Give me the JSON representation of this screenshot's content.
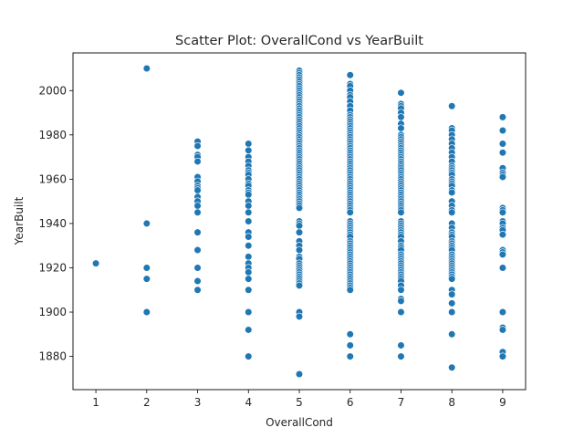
{
  "chart_data": {
    "type": "scatter",
    "title": "Scatter Plot: OverallCond vs YearBuilt",
    "xlabel": "OverallCond",
    "ylabel": "YearBuilt",
    "xlim": [
      0.55,
      9.45
    ],
    "ylim": [
      1865,
      2017
    ],
    "xticks": [
      1,
      2,
      3,
      4,
      5,
      6,
      7,
      8,
      9
    ],
    "yticks": [
      1880,
      1900,
      1920,
      1940,
      1960,
      1980,
      2000
    ],
    "marker_color": "#1f77b4",
    "points": [
      {
        "x": 1,
        "y": [
          1922
        ]
      },
      {
        "x": 2,
        "y": [
          2010,
          1940,
          1920,
          1915,
          1900
        ]
      },
      {
        "x": 3,
        "y": [
          1977,
          1975,
          1971,
          1970,
          1968,
          1961,
          1959,
          1957,
          1956,
          1955,
          1952,
          1950,
          1948,
          1945,
          1936,
          1928,
          1920,
          1914,
          1910
        ]
      },
      {
        "x": 4,
        "y": [
          1976,
          1973,
          1970,
          1968,
          1966,
          1964,
          1963,
          1962,
          1960,
          1958,
          1957,
          1955,
          1954,
          1953,
          1950,
          1948,
          1945,
          1941,
          1936,
          1934,
          1930,
          1925,
          1922,
          1920,
          1918,
          1915,
          1910,
          1900,
          1892,
          1880
        ]
      },
      {
        "x": 5,
        "y": [
          2009,
          2008,
          2007,
          2006,
          2005,
          2004,
          2003,
          2002,
          2001,
          2000,
          1999,
          1998,
          1997,
          1996,
          1995,
          1994,
          1993,
          1992,
          1991,
          1990,
          1989,
          1988,
          1987,
          1986,
          1985,
          1984,
          1983,
          1982,
          1981,
          1980,
          1979,
          1978,
          1977,
          1976,
          1975,
          1974,
          1973,
          1972,
          1971,
          1970,
          1969,
          1968,
          1967,
          1966,
          1965,
          1964,
          1963,
          1962,
          1961,
          1960,
          1959,
          1958,
          1957,
          1956,
          1955,
          1954,
          1953,
          1952,
          1951,
          1950,
          1949,
          1948,
          1947,
          1941,
          1940,
          1939,
          1936,
          1932,
          1930,
          1928,
          1925,
          1924,
          1922,
          1921,
          1920,
          1919,
          1918,
          1917,
          1916,
          1915,
          1914,
          1913,
          1912,
          1900,
          1898,
          1872
        ]
      },
      {
        "x": 6,
        "y": [
          2007,
          2003,
          2002,
          2000,
          1998,
          1997,
          1995,
          1993,
          1991,
          1989,
          1988,
          1987,
          1986,
          1985,
          1984,
          1983,
          1982,
          1981,
          1980,
          1979,
          1978,
          1977,
          1976,
          1975,
          1974,
          1973,
          1972,
          1971,
          1970,
          1969,
          1968,
          1967,
          1966,
          1965,
          1964,
          1963,
          1962,
          1961,
          1960,
          1959,
          1958,
          1957,
          1956,
          1955,
          1954,
          1953,
          1952,
          1951,
          1950,
          1949,
          1948,
          1947,
          1946,
          1945,
          1941,
          1940,
          1939,
          1938,
          1937,
          1936,
          1935,
          1934,
          1932,
          1931,
          1930,
          1929,
          1928,
          1927,
          1926,
          1925,
          1924,
          1923,
          1922,
          1921,
          1920,
          1919,
          1918,
          1917,
          1916,
          1915,
          1914,
          1913,
          1912,
          1911,
          1910,
          1890,
          1885,
          1880
        ]
      },
      {
        "x": 7,
        "y": [
          1999,
          1994,
          1993,
          1992,
          1990,
          1988,
          1985,
          1983,
          1980,
          1979,
          1978,
          1977,
          1976,
          1975,
          1974,
          1973,
          1972,
          1971,
          1970,
          1969,
          1968,
          1967,
          1966,
          1965,
          1964,
          1963,
          1962,
          1961,
          1960,
          1959,
          1958,
          1957,
          1956,
          1955,
          1954,
          1953,
          1952,
          1951,
          1950,
          1949,
          1948,
          1947,
          1946,
          1945,
          1941,
          1940,
          1939,
          1938,
          1937,
          1936,
          1935,
          1934,
          1932,
          1930,
          1929,
          1928,
          1926,
          1925,
          1924,
          1923,
          1922,
          1921,
          1920,
          1919,
          1918,
          1917,
          1916,
          1915,
          1914,
          1912,
          1910,
          1906,
          1905,
          1900,
          1885,
          1880
        ]
      },
      {
        "x": 8,
        "y": [
          1993,
          1983,
          1982,
          1980,
          1978,
          1976,
          1974,
          1972,
          1970,
          1968,
          1966,
          1965,
          1964,
          1963,
          1962,
          1960,
          1959,
          1958,
          1957,
          1955,
          1954,
          1950,
          1948,
          1946,
          1945,
          1940,
          1938,
          1936,
          1935,
          1934,
          1932,
          1931,
          1930,
          1929,
          1928,
          1926,
          1925,
          1924,
          1923,
          1922,
          1921,
          1920,
          1919,
          1918,
          1917,
          1916,
          1915,
          1910,
          1908,
          1904,
          1900,
          1890,
          1875
        ]
      },
      {
        "x": 9,
        "y": [
          1988,
          1982,
          1976,
          1972,
          1965,
          1963,
          1962,
          1961,
          1947,
          1946,
          1945,
          1941,
          1940,
          1938,
          1937,
          1935,
          1928,
          1927,
          1926,
          1920,
          1900,
          1893,
          1892,
          1882,
          1880
        ]
      }
    ]
  }
}
